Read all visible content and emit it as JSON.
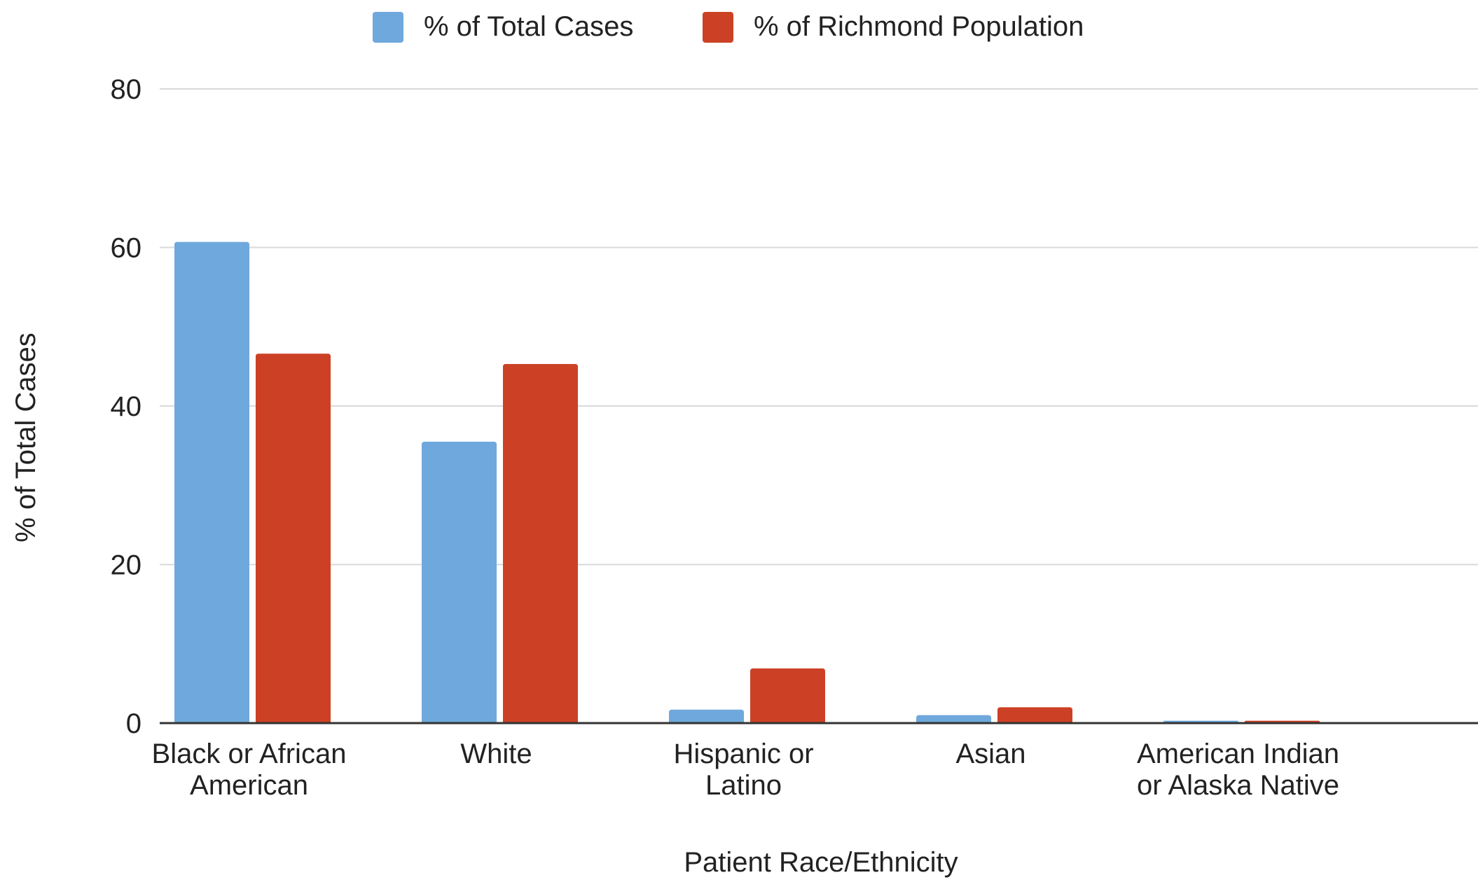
{
  "chart_data": {
    "type": "bar",
    "title": "",
    "xlabel": "Patient Race/Ethnicity",
    "ylabel": "% of Total Cases",
    "ylim": [
      0,
      80
    ],
    "yticks": [
      0,
      20,
      40,
      60,
      80
    ],
    "grid": true,
    "legend_position": "top-center",
    "categories": [
      [
        "Black or African",
        "American"
      ],
      [
        "White"
      ],
      [
        "Hispanic or",
        "Latino"
      ],
      [
        "Asian"
      ],
      [
        "American Indian",
        "or Alaska Native"
      ]
    ],
    "series": [
      {
        "name": "% of Total Cases",
        "color": "#6fa8dc",
        "values": [
          60.7,
          35.5,
          1.7,
          1.0,
          0.3
        ]
      },
      {
        "name": "% of Richmond Population",
        "color": "#cc4125",
        "values": [
          46.6,
          45.3,
          6.9,
          2.0,
          0.3
        ]
      }
    ],
    "colors": {
      "grid": "#d9d9d9",
      "axis": "#333333",
      "text": "#222222"
    }
  }
}
